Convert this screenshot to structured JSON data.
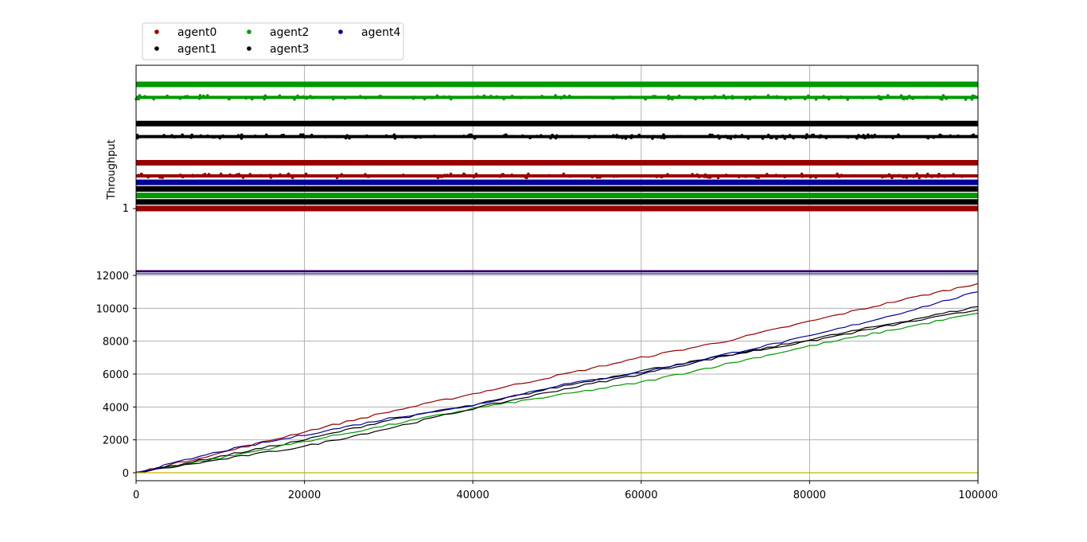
{
  "chart_data": [
    {
      "type": "scatter",
      "title": "",
      "xlabel": "",
      "ylabel": "Throughput",
      "xlim": [
        0,
        100000
      ],
      "y_ticks": [
        "1"
      ],
      "grid": true,
      "legend": {
        "placement": "top-left, above plot",
        "ncol": 3,
        "entries": [
          {
            "name": "agent0",
            "color": "#990000"
          },
          {
            "name": "agent1",
            "color": "#000000"
          },
          {
            "name": "agent2",
            "color": "#009900"
          },
          {
            "name": "agent3",
            "color": "#000000"
          },
          {
            "name": "agent4",
            "color": "#000099"
          }
        ]
      },
      "bands": [
        {
          "series": "agent2",
          "level": 1.95,
          "color": "#009900"
        },
        {
          "series": "agent2",
          "level": 1.85,
          "color": "#009900",
          "scattered": true
        },
        {
          "series": "agent1",
          "level": 1.65,
          "color": "#000000"
        },
        {
          "series": "agent3",
          "level": 1.55,
          "color": "#000000",
          "scattered": true
        },
        {
          "series": "agent0",
          "level": 1.35,
          "color": "#990000"
        },
        {
          "series": "agent0",
          "level": 1.25,
          "color": "#990000",
          "scattered": true
        },
        {
          "series": "agent4",
          "level": 1.2,
          "color": "#000099"
        },
        {
          "series": "agent1",
          "level": 1.15,
          "color": "#000000"
        },
        {
          "series": "agent2",
          "level": 1.1,
          "color": "#009900"
        },
        {
          "series": "agent3",
          "level": 1.05,
          "color": "#000000"
        },
        {
          "series": "agent0",
          "level": 1.0,
          "color": "#990000"
        },
        {
          "series": "agent4",
          "level": 0.5,
          "color": "#000099",
          "thin": true
        }
      ]
    },
    {
      "type": "line",
      "title": "",
      "xlabel": "",
      "ylabel": "",
      "xlim": [
        0,
        100000
      ],
      "ylim": [
        -500,
        12000
      ],
      "x_ticks": [
        "0",
        "20000",
        "40000",
        "60000",
        "80000",
        "100000"
      ],
      "y_ticks": [
        "0",
        "2000",
        "4000",
        "6000",
        "8000",
        "10000",
        "12000"
      ],
      "grid": true,
      "x": [
        0,
        10000,
        20000,
        30000,
        40000,
        50000,
        60000,
        70000,
        80000,
        90000,
        100000
      ],
      "series": [
        {
          "name": "agent0",
          "color": "#990000",
          "values": [
            0,
            1200,
            2500,
            3700,
            4800,
            5900,
            7000,
            8000,
            9200,
            10400,
            11500
          ]
        },
        {
          "name": "agent1",
          "color": "#000000",
          "values": [
            0,
            1000,
            2000,
            3200,
            4100,
            5200,
            6200,
            7100,
            8100,
            9100,
            10100
          ]
        },
        {
          "name": "agent2",
          "color": "#009900",
          "values": [
            0,
            900,
            1900,
            2900,
            3900,
            4700,
            5500,
            6600,
            7700,
            8700,
            9700
          ]
        },
        {
          "name": "agent3",
          "color": "#000000",
          "values": [
            0,
            800,
            1600,
            2700,
            3900,
            5000,
            6000,
            7100,
            8000,
            9000,
            9900
          ]
        },
        {
          "name": "agent4",
          "color": "#000099",
          "values": [
            0,
            1300,
            2300,
            3300,
            4100,
            5300,
            6100,
            7200,
            8300,
            9600,
            11000
          ]
        },
        {
          "name": "",
          "color": "#c8b400",
          "values": [
            0,
            0,
            0,
            0,
            0,
            0,
            0,
            0,
            0,
            0,
            0
          ]
        }
      ]
    }
  ]
}
